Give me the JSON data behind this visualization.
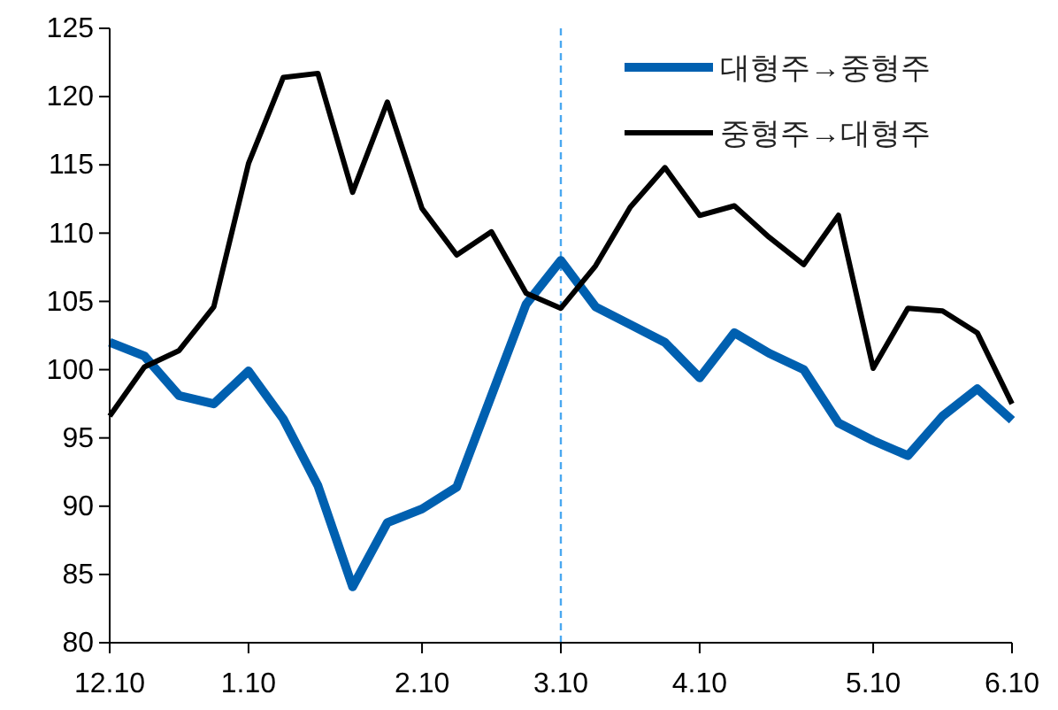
{
  "chart_data": {
    "type": "line",
    "categories": [
      "12.10",
      null,
      null,
      null,
      "1.10",
      null,
      null,
      null,
      null,
      "2.10",
      null,
      null,
      null,
      "3.10",
      null,
      null,
      null,
      "4.10",
      null,
      null,
      null,
      null,
      "5.10",
      null,
      null,
      null,
      "6.10"
    ],
    "series": [
      {
        "name": "대형주→중형주",
        "color": "#0060b0",
        "values": [
          102.0,
          101.0,
          98.1,
          97.5,
          99.9,
          96.4,
          91.5,
          84.1,
          88.8,
          89.8,
          91.4,
          98.1,
          104.8,
          108.0,
          104.6,
          103.3,
          102.0,
          99.4,
          102.7,
          101.2,
          100.0,
          96.1,
          94.8,
          93.7,
          96.6,
          98.6,
          96.3
        ]
      },
      {
        "name": "중형주→대형주",
        "color": "#000000",
        "values": [
          96.6,
          100.2,
          101.4,
          104.6,
          115.1,
          121.4,
          121.7,
          113.0,
          119.6,
          111.8,
          108.4,
          110.1,
          105.6,
          104.5,
          107.6,
          111.9,
          114.8,
          111.3,
          112.0,
          109.7,
          107.7,
          111.3,
          100.1,
          104.5,
          104.3,
          102.7,
          97.5
        ]
      }
    ],
    "ylim": [
      80,
      125
    ],
    "yticks": [
      80,
      85,
      90,
      95,
      100,
      105,
      110,
      115,
      120,
      125
    ],
    "ref_lines": [
      {
        "axis": "x",
        "value": "3.10",
        "color": "#4aa8f0",
        "line_style": "dashed"
      }
    ],
    "legend": "top right",
    "grid": false,
    "marker": "none",
    "line_style": "solid"
  }
}
